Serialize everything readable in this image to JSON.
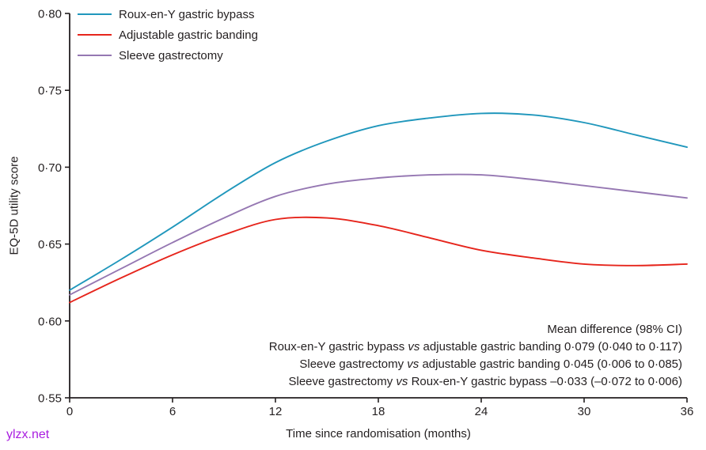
{
  "watermark": {
    "text": "ylzx.net",
    "color": "#A91DE0"
  },
  "chart_data": {
    "type": "line",
    "xlabel": "Time since randomisation (months)",
    "ylabel": "EQ-5D utility score",
    "xlim": [
      0,
      36
    ],
    "ylim": [
      0.55,
      0.8
    ],
    "grid": false,
    "legend_position": "top-left",
    "axis_color": "#231F20",
    "xticks": [
      {
        "value": 0,
        "label": "0"
      },
      {
        "value": 6,
        "label": "6"
      },
      {
        "value": 12,
        "label": "12"
      },
      {
        "value": 18,
        "label": "18"
      },
      {
        "value": 24,
        "label": "24"
      },
      {
        "value": 30,
        "label": "30"
      },
      {
        "value": 36,
        "label": "36"
      }
    ],
    "yticks": [
      {
        "value": 0.55,
        "label": "0·55"
      },
      {
        "value": 0.6,
        "label": "0·60"
      },
      {
        "value": 0.65,
        "label": "0·65"
      },
      {
        "value": 0.7,
        "label": "0·70"
      },
      {
        "value": 0.75,
        "label": "0·75"
      },
      {
        "value": 0.8,
        "label": "0·80"
      }
    ],
    "x": [
      0,
      3,
      6,
      9,
      12,
      15,
      18,
      21,
      24,
      27,
      30,
      33,
      36
    ],
    "series": [
      {
        "name": "Roux-en-Y gastric bypass",
        "color": "#2097BC",
        "values": [
          0.62,
          0.64,
          0.661,
          0.683,
          0.703,
          0.717,
          0.727,
          0.732,
          0.735,
          0.734,
          0.729,
          0.721,
          0.713
        ]
      },
      {
        "name": "Adjustable gastric banding",
        "color": "#E6251C",
        "values": [
          0.612,
          0.628,
          0.643,
          0.656,
          0.666,
          0.667,
          0.662,
          0.654,
          0.646,
          0.641,
          0.637,
          0.636,
          0.637
        ]
      },
      {
        "name": "Sleeve gastrectomy",
        "color": "#9577B2",
        "values": [
          0.617,
          0.634,
          0.651,
          0.667,
          0.681,
          0.689,
          0.693,
          0.695,
          0.695,
          0.692,
          0.688,
          0.684,
          0.68
        ]
      }
    ],
    "annotation": {
      "lines": [
        [
          {
            "t": "Mean difference (98% CI)"
          }
        ],
        [
          {
            "t": "Roux-en-Y gastric bypass "
          },
          {
            "t": "vs",
            "i": true
          },
          {
            "t": " adjustable gastric banding 0·079 (0·040 to 0·117)"
          }
        ],
        [
          {
            "t": "Sleeve gastrectomy "
          },
          {
            "t": "vs",
            "i": true
          },
          {
            "t": " adjustable gastric banding 0·045 (0·006 to 0·085)"
          }
        ],
        [
          {
            "t": "Sleeve gastrectomy "
          },
          {
            "t": "vs",
            "i": true
          },
          {
            "t": " Roux-en-Y gastric bypass –0·033 (–0·072 to 0·006)"
          }
        ]
      ]
    }
  }
}
